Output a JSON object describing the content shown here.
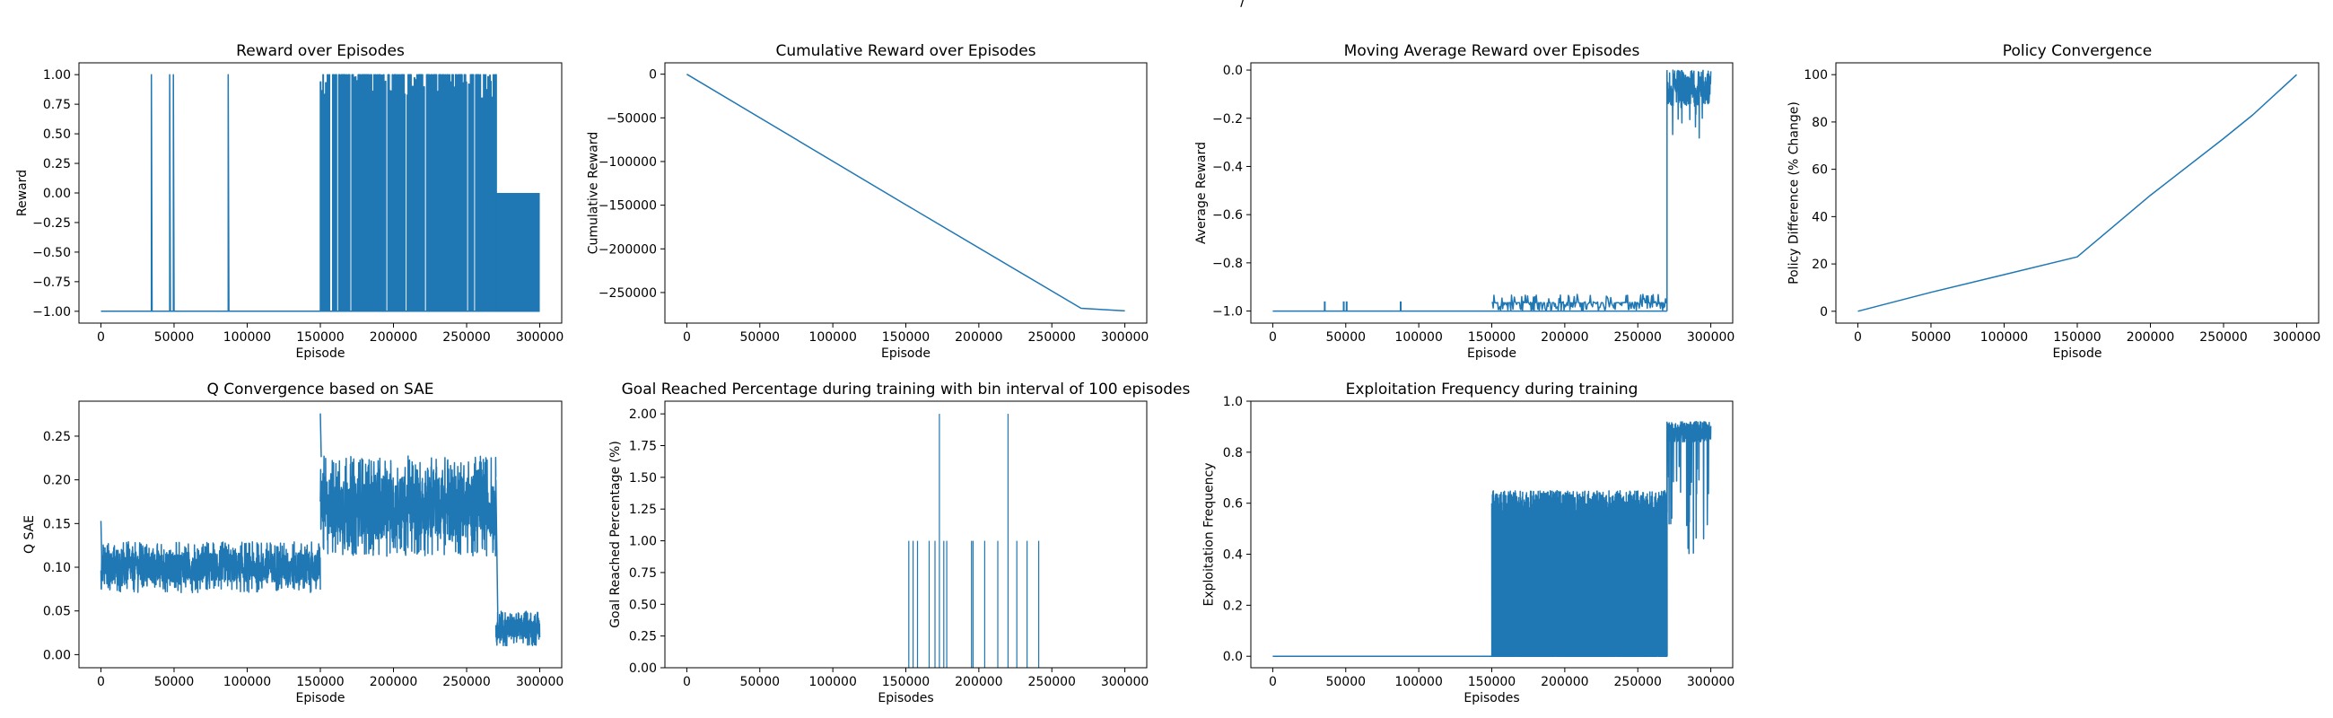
{
  "figure": {
    "suptitle": "/"
  },
  "colors": {
    "series": "#1f77b4",
    "axis": "#000000",
    "background": "#ffffff"
  },
  "chart_data": [
    {
      "id": "reward",
      "type": "line",
      "title": "Reward over Episodes",
      "xlabel": "Episode",
      "ylabel": "Reward",
      "xlim": [
        -15000,
        315000
      ],
      "ylim": [
        -1.1,
        1.1
      ],
      "xticks": [
        0,
        50000,
        100000,
        150000,
        200000,
        250000,
        300000
      ],
      "yticks": [
        -1.0,
        -0.75,
        -0.5,
        -0.25,
        0.0,
        0.25,
        0.5,
        0.75,
        1.0
      ],
      "ytick_labels": [
        "−1.00",
        "−0.75",
        "−0.50",
        "−0.25",
        "0.00",
        "0.25",
        "0.50",
        "0.75",
        "1.00"
      ],
      "grid": false,
      "series": [
        {
          "pattern": "spikes",
          "baseline": -1.0,
          "spikes": [
            34500,
            47000,
            49500,
            87000
          ],
          "dense_region": [
            150000,
            270000
          ],
          "dense_top": 1.0,
          "zero_band": [
            270000,
            300000
          ],
          "zero_level": 0.0
        }
      ]
    },
    {
      "id": "cumulative",
      "type": "line",
      "title": "Cumulative Reward over Episodes",
      "xlabel": "Episode",
      "ylabel": "Cumulative Reward",
      "xlim": [
        -15000,
        315000
      ],
      "ylim": [
        -285000,
        13000
      ],
      "xticks": [
        0,
        50000,
        100000,
        150000,
        200000,
        250000,
        300000
      ],
      "yticks": [
        0,
        -50000,
        -100000,
        -150000,
        -200000,
        -250000
      ],
      "ytick_labels": [
        "0",
        "−50000",
        "−100000",
        "−150000",
        "−200000",
        "−250000"
      ],
      "grid": false,
      "series": [
        {
          "x": [
            0,
            150000,
            270000,
            300000
          ],
          "y": [
            0,
            -149500,
            -268000,
            -271000
          ]
        }
      ]
    },
    {
      "id": "moving_avg",
      "type": "line",
      "title": "Moving Average Reward over Episodes",
      "xlabel": "Episode",
      "ylabel": "Average Reward",
      "xlim": [
        -15000,
        315000
      ],
      "ylim": [
        -1.05,
        0.03
      ],
      "xticks": [
        0,
        50000,
        100000,
        150000,
        200000,
        250000,
        300000
      ],
      "yticks": [
        -1.0,
        -0.8,
        -0.6,
        -0.4,
        -0.2,
        0.0
      ],
      "ytick_labels": [
        "−1.0",
        "−0.8",
        "−0.6",
        "−0.4",
        "−0.2",
        "0.0"
      ],
      "grid": false,
      "series": [
        {
          "pattern": "moving_avg",
          "baseline": -1.0,
          "early_bumps": [
            35000,
            48000,
            50000,
            87000
          ],
          "bump_level": -0.96,
          "noisy_region": [
            150000,
            270000
          ],
          "noisy_top": -0.92,
          "jump_at": 270000,
          "late_band": [
            -0.3,
            0.0
          ]
        }
      ]
    },
    {
      "id": "policy",
      "type": "line",
      "title": "Policy Convergence",
      "xlabel": "Episode",
      "ylabel": "Policy Difference (% Change)",
      "xlim": [
        -15000,
        315000
      ],
      "ylim": [
        -5,
        105
      ],
      "xticks": [
        0,
        50000,
        100000,
        150000,
        200000,
        250000,
        300000
      ],
      "yticks": [
        0,
        20,
        40,
        60,
        80,
        100
      ],
      "ytick_labels": [
        "0",
        "20",
        "40",
        "60",
        "80",
        "100"
      ],
      "grid": false,
      "series": [
        {
          "x": [
            0,
            50000,
            100000,
            150000,
            200000,
            250000,
            270000,
            300000
          ],
          "y": [
            0,
            8,
            15.5,
            23,
            49,
            73,
            83,
            100
          ]
        }
      ]
    },
    {
      "id": "q_sae",
      "type": "line",
      "title": "Q Convergence based on SAE",
      "xlabel": "Episode",
      "ylabel": "Q SAE",
      "xlim": [
        -15000,
        315000
      ],
      "ylim": [
        -0.015,
        0.29
      ],
      "xticks": [
        0,
        50000,
        100000,
        150000,
        200000,
        250000,
        300000
      ],
      "yticks": [
        0.0,
        0.05,
        0.1,
        0.15,
        0.2,
        0.25
      ],
      "ytick_labels": [
        "0.00",
        "0.05",
        "0.10",
        "0.15",
        "0.20",
        "0.25"
      ],
      "grid": false,
      "series": [
        {
          "pattern": "noise_bands",
          "bands": [
            {
              "x": [
                0,
                150000
              ],
              "low": 0.072,
              "high": 0.13,
              "mean": 0.1
            },
            {
              "x": [
                150000,
                270000
              ],
              "low": 0.12,
              "high": 0.235,
              "mean": 0.17
            },
            {
              "x": [
                270000,
                300000
              ],
              "low": 0.01,
              "high": 0.05,
              "mean": 0.03
            }
          ],
          "peaks": [
            [
              0,
              0.153
            ],
            [
              150000,
              0.276
            ]
          ]
        }
      ]
    },
    {
      "id": "goal_pct",
      "type": "bar",
      "title": "Goal Reached Percentage during training with bin interval of 100 episodes",
      "xlabel": "Episodes",
      "ylabel": "Goal Reached Percentage (%)",
      "xlim": [
        -15000,
        315000
      ],
      "ylim": [
        0,
        2.1
      ],
      "xticks": [
        0,
        50000,
        100000,
        150000,
        200000,
        250000,
        300000
      ],
      "yticks": [
        0.0,
        0.25,
        0.5,
        0.75,
        1.0,
        1.25,
        1.5,
        1.75,
        2.0
      ],
      "ytick_labels": [
        "0.00",
        "0.25",
        "0.50",
        "0.75",
        "1.00",
        "1.25",
        "1.50",
        "1.75",
        "2.00"
      ],
      "grid": false,
      "series": [
        {
          "x": [
            152000,
            155000,
            158000,
            166000,
            170000,
            173000,
            176000,
            178000,
            195000,
            196000,
            204000,
            213000,
            220000,
            226000,
            233000,
            241000
          ],
          "values": [
            1,
            1,
            1,
            1,
            1,
            2,
            1,
            1,
            1,
            1,
            1,
            1,
            2,
            1,
            1,
            1
          ]
        }
      ]
    },
    {
      "id": "exploitation",
      "type": "line",
      "title": "Exploitation Frequency during training",
      "xlabel": "Episodes",
      "ylabel": "Exploitation Frequency",
      "xlim": [
        -15000,
        315000
      ],
      "ylim": [
        -0.045,
        1.0
      ],
      "xticks": [
        0,
        50000,
        100000,
        150000,
        200000,
        250000,
        300000
      ],
      "yticks": [
        0.0,
        0.2,
        0.4,
        0.6,
        0.8,
        1.0
      ],
      "ytick_labels": [
        "0.0",
        "0.2",
        "0.4",
        "0.6",
        "0.8",
        "1.0"
      ],
      "grid": false,
      "series": [
        {
          "pattern": "exploitation",
          "flat": [
            0,
            150000
          ],
          "flat_level": 0.0,
          "dense_region": [
            150000,
            270000
          ],
          "dense_top": 0.65,
          "late_region": [
            270000,
            300000
          ],
          "late_level": 0.92,
          "late_dips": 0.35
        }
      ]
    }
  ]
}
